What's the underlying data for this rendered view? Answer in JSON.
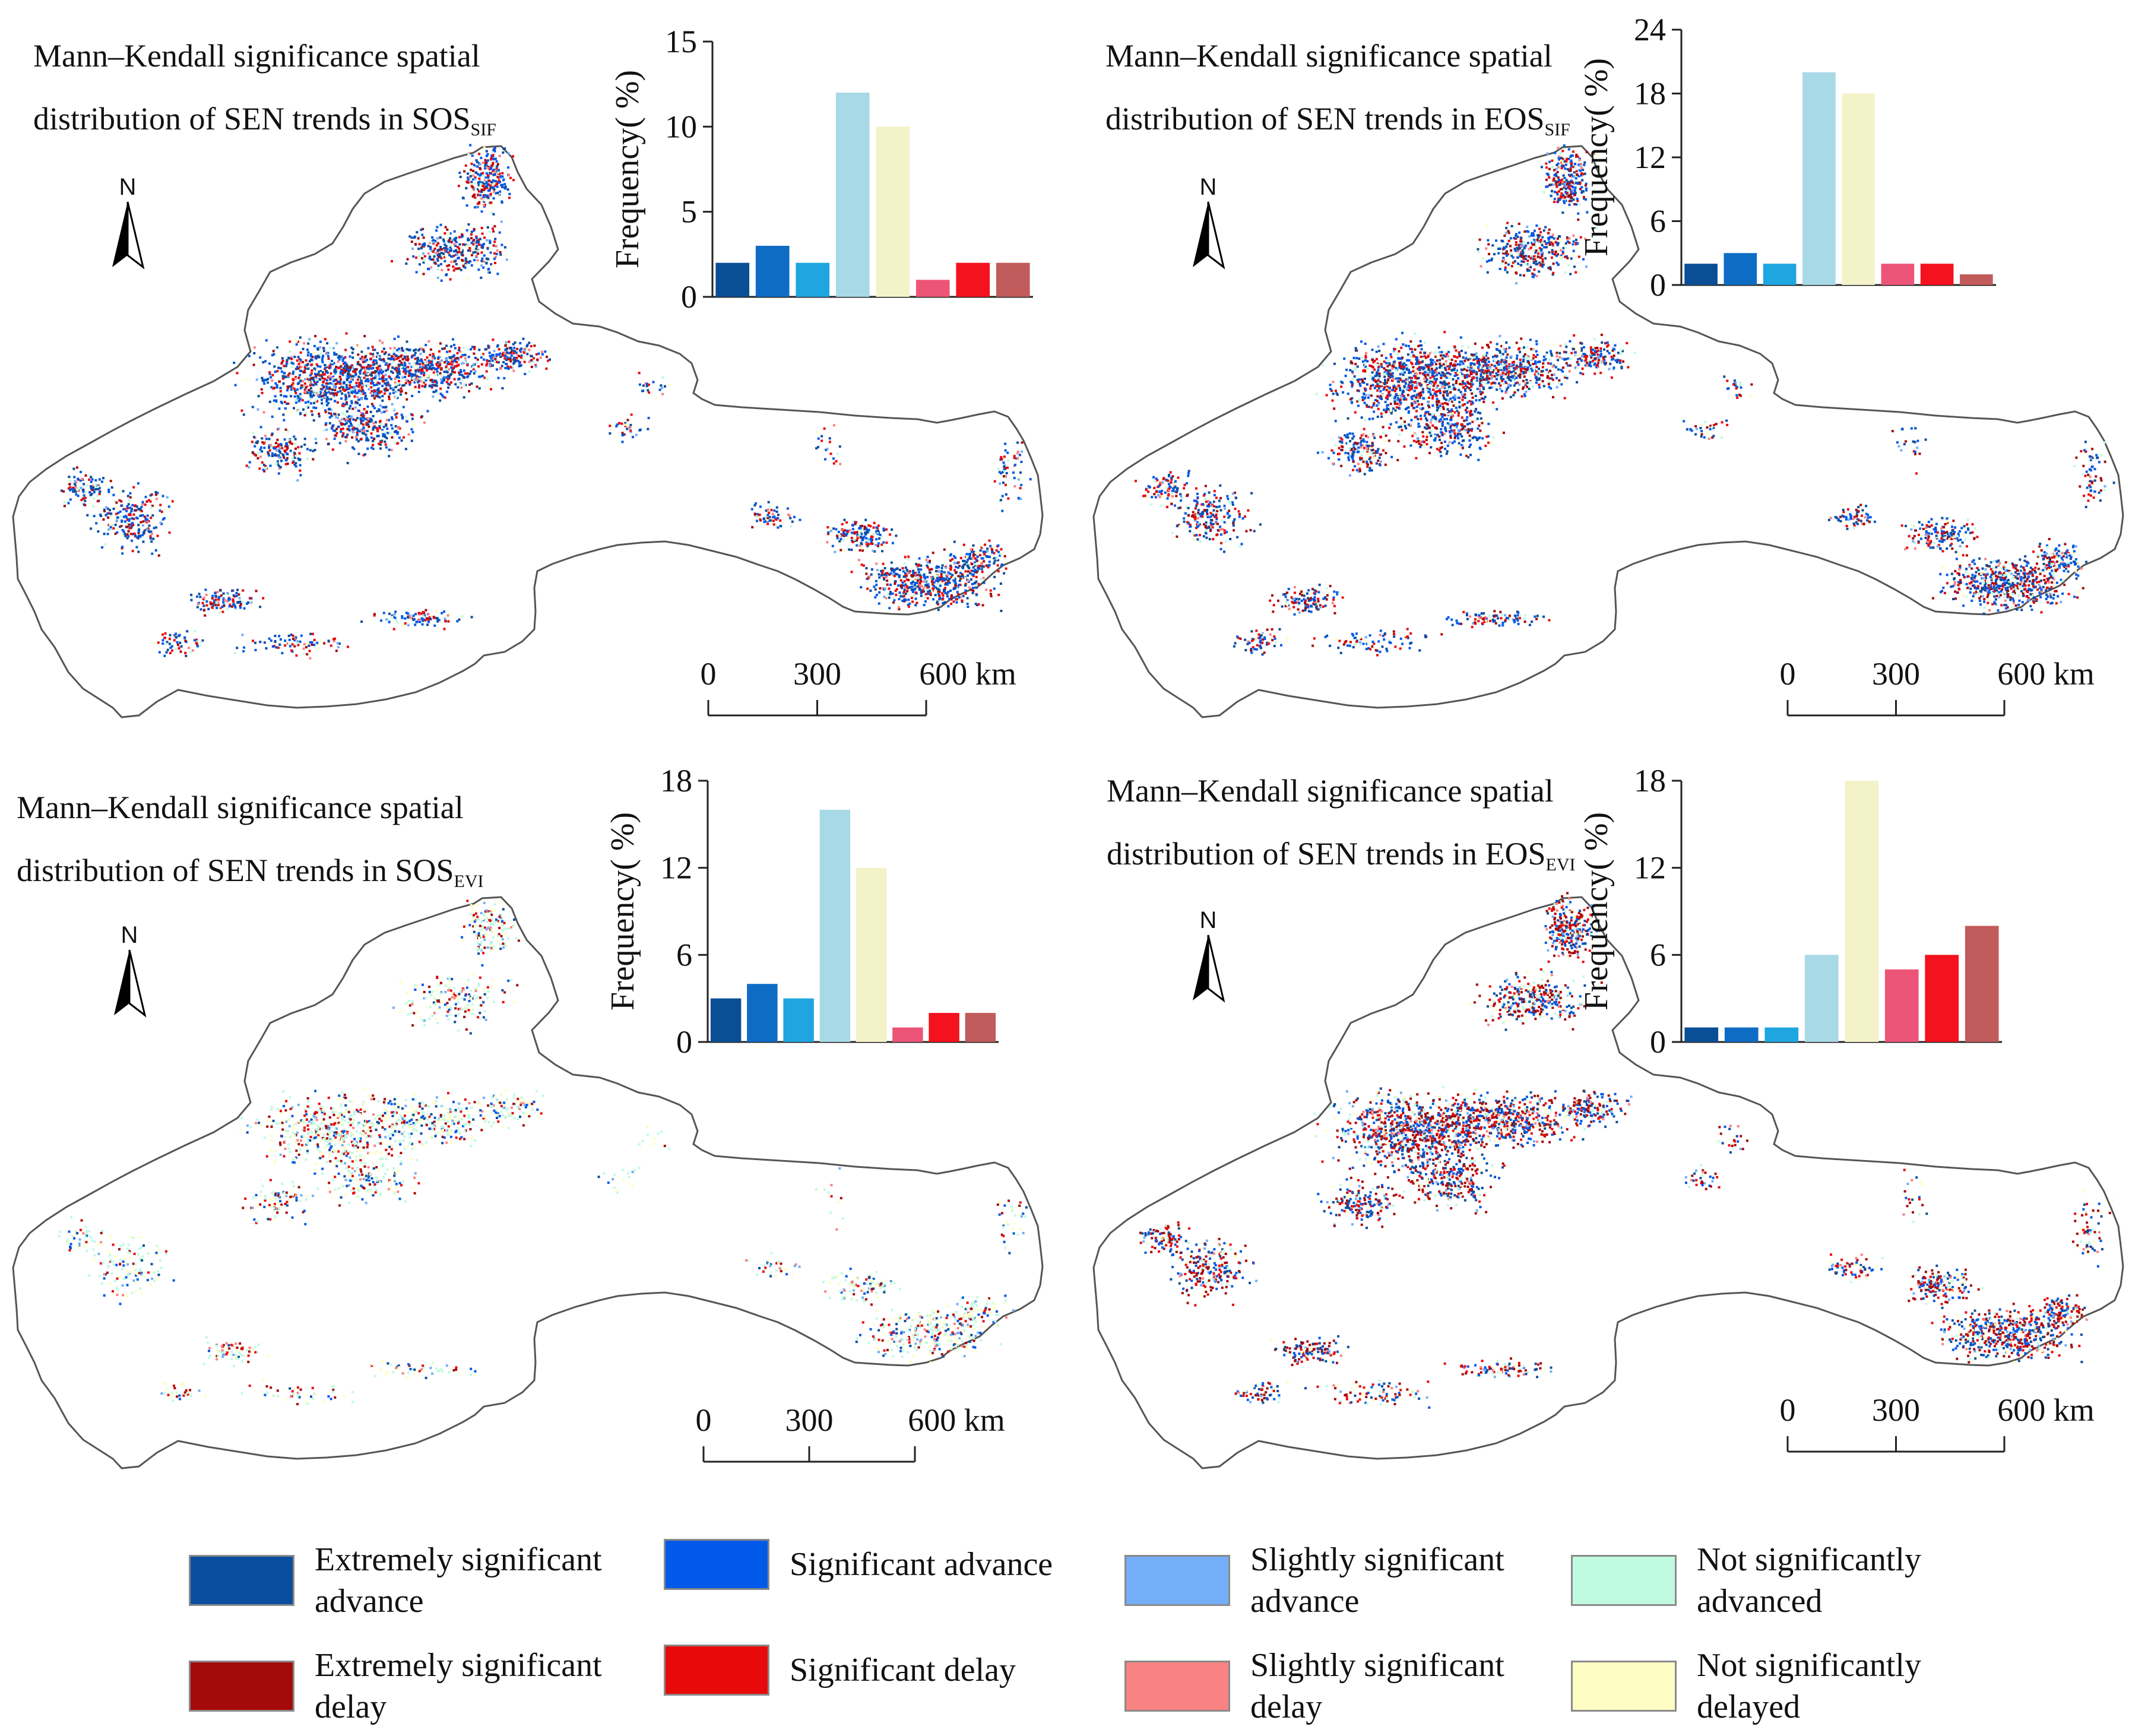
{
  "panels": [
    {
      "id": "sos-sif",
      "title_line1": "Mann–Kendall significance spatial",
      "title_line2": "distribution of SEN trends in SOS",
      "title_sub": "SIF",
      "north": "N",
      "scale_labels": [
        "0",
        "300",
        "600 km"
      ],
      "chart_data": {
        "type": "bar",
        "ylabel": "Frequency( %)",
        "ylim": [
          0,
          15
        ],
        "yticks": [
          "0",
          "5",
          "10",
          "15"
        ],
        "values": [
          2,
          3,
          2,
          12,
          10,
          1,
          2,
          2
        ],
        "colors": [
          "#0a4e96",
          "#0f6cc4",
          "#1fa6e0",
          "#a8d9e6",
          "#f4f2c8",
          "#ec5578",
          "#f3121d",
          "#c25b5b"
        ]
      }
    },
    {
      "id": "eos-sif",
      "title_line1": "Mann–Kendall significance spatial",
      "title_line2": "distribution of SEN trends in EOS",
      "title_sub": "SIF",
      "north": "N",
      "scale_labels": [
        "0",
        "300",
        "600 km"
      ],
      "chart_data": {
        "type": "bar",
        "ylabel": "Frequency( %)",
        "ylim": [
          0,
          24
        ],
        "yticks": [
          "0",
          "6",
          "12",
          "18",
          "24"
        ],
        "values": [
          2,
          3,
          2,
          20,
          18,
          2,
          2,
          1
        ],
        "colors": [
          "#0a4e96",
          "#0f6cc4",
          "#1fa6e0",
          "#a8d9e6",
          "#f4f2c8",
          "#ec5578",
          "#f3121d",
          "#c25b5b"
        ]
      }
    },
    {
      "id": "sos-evi",
      "title_line1": "Mann–Kendall significance spatial",
      "title_line2": "distribution of SEN trends in SOS",
      "title_sub": "EVI",
      "north": "N",
      "scale_labels": [
        "0",
        "300",
        "600 km"
      ],
      "chart_data": {
        "type": "bar",
        "ylabel": "Frequency( %)",
        "ylim": [
          0,
          18
        ],
        "yticks": [
          "0",
          "6",
          "12",
          "18"
        ],
        "values": [
          3,
          4,
          3,
          16,
          12,
          1,
          2,
          2
        ],
        "colors": [
          "#0a4e96",
          "#0f6cc4",
          "#1fa6e0",
          "#a8d9e6",
          "#f4f2c8",
          "#ec5578",
          "#f3121d",
          "#c25b5b"
        ]
      }
    },
    {
      "id": "eos-evi",
      "title_line1": "Mann–Kendall significance spatial",
      "title_line2": "distribution of SEN trends in EOS",
      "title_sub": "EVI",
      "north": "N",
      "scale_labels": [
        "0",
        "300",
        "600 km"
      ],
      "chart_data": {
        "type": "bar",
        "ylabel": "Frequency( %)",
        "ylim": [
          0,
          18
        ],
        "yticks": [
          "0",
          "6",
          "12",
          "18"
        ],
        "values": [
          1,
          1,
          1,
          6,
          18,
          5,
          6,
          8
        ],
        "colors": [
          "#0a4e96",
          "#0f6cc4",
          "#1fa6e0",
          "#a8d9e6",
          "#f4f2c8",
          "#ec5578",
          "#f3121d",
          "#c25b5b"
        ]
      }
    }
  ],
  "legend": [
    {
      "label": "Extremely significant\nadvance",
      "color": "#0b4ea0"
    },
    {
      "label": "Significant advance",
      "color": "#0059e8"
    },
    {
      "label": "Slightly significant\nadvance",
      "color": "#74aef8"
    },
    {
      "label": "Not significantly\nadvanced",
      "color": "#c0fae0"
    },
    {
      "label": "Extremely significant\ndelay",
      "color": "#a50a0a"
    },
    {
      "label": "Significant delay",
      "color": "#e80a0a"
    },
    {
      "label": "Slightly significant\ndelay",
      "color": "#f98282"
    },
    {
      "label": "Not significantly\ndelayed",
      "color": "#fdfdc4"
    }
  ],
  "map_colors": {
    "outline": "#555555",
    "land": "#ffffff"
  }
}
